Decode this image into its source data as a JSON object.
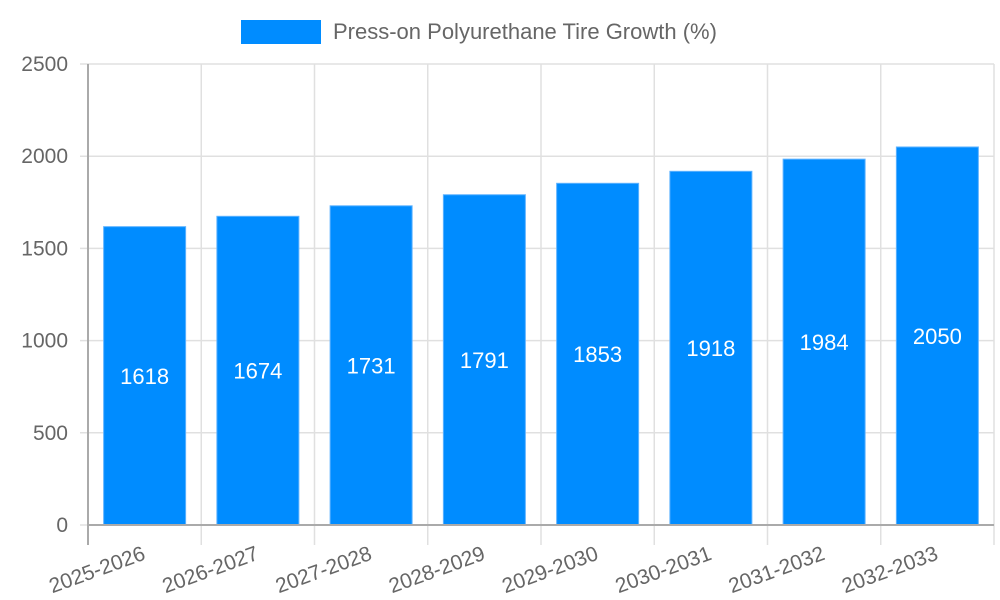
{
  "legend": {
    "label": "Press-on Polyurethane Tire Growth (%)",
    "color": "#008cff"
  },
  "chart_data": {
    "type": "bar",
    "title": "",
    "xlabel": "",
    "ylabel": "",
    "categories": [
      "2025-2026",
      "2026-2027",
      "2027-2028",
      "2028-2029",
      "2029-2030",
      "2030-2031",
      "2031-2032",
      "2032-2033"
    ],
    "series": [
      {
        "name": "Press-on Polyurethane Tire Growth (%)",
        "color": "#008cff",
        "values": [
          1618,
          1674,
          1731,
          1791,
          1853,
          1918,
          1984,
          2050
        ]
      }
    ],
    "ylim": [
      0,
      2500
    ],
    "yticks": [
      0,
      500,
      1000,
      1500,
      2000,
      2500
    ],
    "grid": true,
    "legend_position": "top",
    "data_labels": true
  }
}
